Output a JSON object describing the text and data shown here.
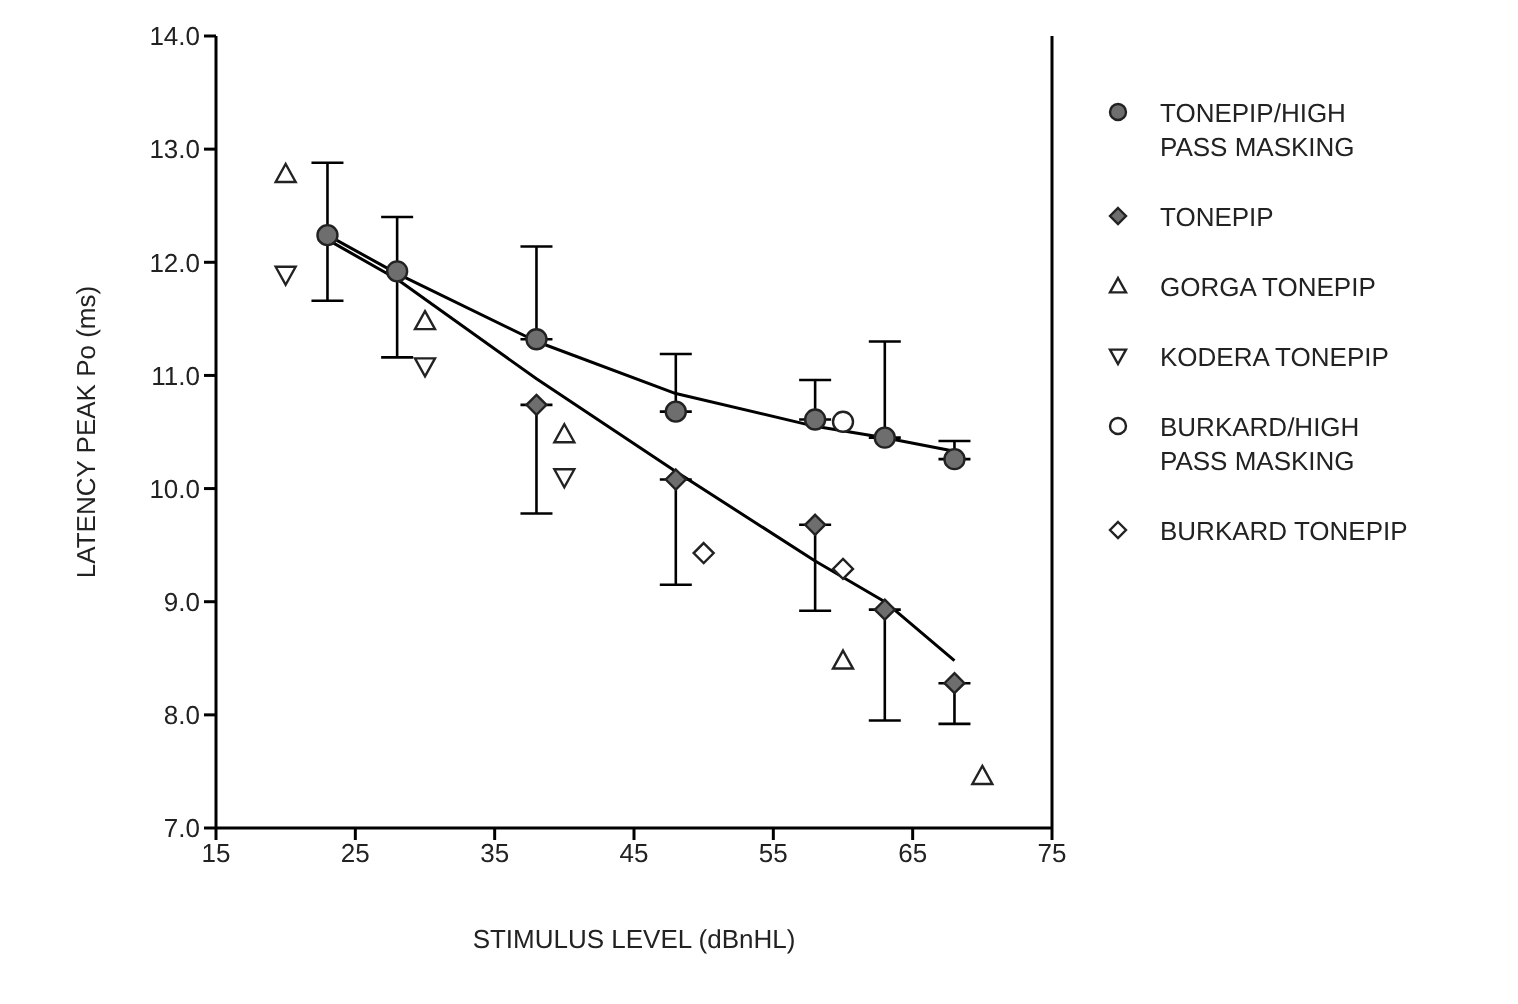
{
  "chart_data": {
    "type": "scatter",
    "xlabel": "STIMULUS LEVEL (dBnHL)",
    "ylabel": "LATENCY PEAK Po (ms)",
    "xlim": [
      15,
      75
    ],
    "xticks": [
      15,
      25,
      35,
      45,
      55,
      65,
      75
    ],
    "ylim": [
      7,
      14
    ],
    "yticks": [
      {
        "value": 7,
        "label": "7.0"
      },
      {
        "value": 8,
        "label": "8.0"
      },
      {
        "value": 9,
        "label": "9.0"
      },
      {
        "value": 10,
        "label": "10.0"
      },
      {
        "value": 11,
        "label": "11.0"
      },
      {
        "value": 12,
        "label": "12.0"
      },
      {
        "value": 13,
        "label": "13.0"
      },
      {
        "value": 14,
        "label": "14.0"
      }
    ],
    "grid": false,
    "legend": "right",
    "series": [
      {
        "type": "line",
        "color": "#000000",
        "marker": "none",
        "x": [
          23,
          28,
          38,
          48,
          58,
          63,
          68
        ],
        "values": [
          12.24,
          11.9,
          11.3,
          10.84,
          10.55,
          10.45,
          10.33
        ]
      },
      {
        "type": "line",
        "color": "#000000",
        "marker": "none",
        "x": [
          23,
          28,
          38,
          48,
          58,
          63,
          68
        ],
        "values": [
          12.2,
          11.85,
          10.97,
          10.15,
          9.36,
          9.0,
          8.48
        ]
      },
      {
        "name": "TONEPIP/HIGH PASS MASKING",
        "color": "#6e6e6e",
        "marker": "circle",
        "x": [
          23,
          28,
          38,
          48,
          58,
          63,
          68
        ],
        "values": [
          12.24,
          11.92,
          11.32,
          10.68,
          10.61,
          10.45,
          10.26
        ],
        "errors": [
          [
            11.66,
            12.88
          ],
          [
            11.16,
            12.4
          ],
          [
            11.32,
            12.14
          ],
          [
            10.68,
            11.19
          ],
          [
            10.61,
            10.96
          ],
          [
            10.45,
            11.3
          ],
          [
            10.26,
            10.42
          ]
        ]
      },
      {
        "name": "TONEPIP",
        "color": "#6e6e6e",
        "marker": "diamond",
        "x": [
          38,
          48,
          58,
          63,
          68
        ],
        "values": [
          10.74,
          10.08,
          9.68,
          8.93,
          8.28
        ],
        "errors": [
          [
            9.78,
            10.74
          ],
          [
            9.15,
            10.08
          ],
          [
            8.92,
            9.68
          ],
          [
            7.95,
            8.93
          ],
          [
            7.92,
            8.28
          ]
        ]
      },
      {
        "name": "GORGA TONEPIP",
        "color": "#ffffff",
        "marker": "triangle",
        "x": [
          20,
          30,
          40,
          60,
          70
        ],
        "values": [
          12.78,
          11.48,
          10.48,
          8.48,
          7.46
        ]
      },
      {
        "name": "KODERA TONEPIP",
        "color": "#ffffff",
        "marker": "triangle-down",
        "x": [
          20,
          30,
          40
        ],
        "values": [
          11.89,
          11.08,
          10.1
        ]
      },
      {
        "name": "BURKARD/HIGH PASS MASKING",
        "color": "#ffffff",
        "marker": "circle",
        "x": [
          60
        ],
        "values": [
          10.59
        ]
      },
      {
        "name": "BURKARD TONEPIP",
        "color": "#ffffff",
        "marker": "diamond",
        "x": [
          50,
          60
        ],
        "values": [
          9.43,
          9.29
        ]
      }
    ]
  }
}
